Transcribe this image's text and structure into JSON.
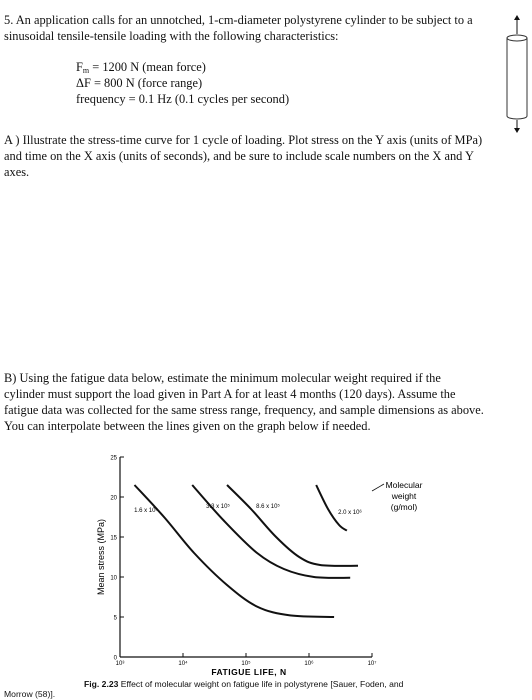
{
  "problem": {
    "intro_line1": "5. An application calls for an unnotched, 1-cm-diameter polystyrene cylinder to be subject to a",
    "intro_line2": "sinusoidal tensile-tensile loading with the following characteristics:",
    "fm_symbol": "F",
    "fm_sub": "m",
    "fm_rest": " = 1200 N (mean force)",
    "df_line": "ΔF = 800 N  (force range)",
    "freq_line": "frequency = 0.1 Hz  (0.1 cycles per second)"
  },
  "part_a": {
    "line1": "A ) Illustrate the stress-time curve for 1 cycle of loading.  Plot stress on the Y axis (units of MPa)",
    "line2": "and time on the X axis (units of seconds), and be sure to include scale numbers on the X and Y",
    "line3": "axes."
  },
  "part_b": {
    "line1": "B)  Using the fatigue data below, estimate the minimum molecular weight required if the",
    "line2": "cylinder must support the load given in Part A for at least 4 months (120 days).  Assume the",
    "line3": "fatigue data was collected for the same stress range, frequency, and sample dimensions as above.",
    "line4": "You can interpolate between the lines given on the graph below if needed."
  },
  "chart_data": {
    "type": "line",
    "xlabel": "FATIGUE LIFE, N",
    "ylabel": "Mean stress (MPa)",
    "xscale": "log",
    "xlim": [
      1000,
      10000000
    ],
    "ylim": [
      0,
      25
    ],
    "x_tick_labels": [
      "10³",
      "10⁴",
      "10⁵",
      "10⁶",
      "10⁷"
    ],
    "y_tick_labels": [
      "0",
      "5",
      "10",
      "15",
      "20",
      "25"
    ],
    "legend_title": [
      "Molecular",
      "weight",
      "(g/mol)"
    ],
    "series": [
      {
        "name": "1.6 x 10⁵",
        "points": [
          [
            1700,
            21.5
          ],
          [
            5000,
            17.5
          ],
          [
            15000,
            13
          ],
          [
            50000,
            9
          ],
          [
            150000,
            6.3
          ],
          [
            500000,
            5.2
          ],
          [
            2500000,
            5.0
          ]
        ]
      },
      {
        "name": "3.3 x 10⁵",
        "points": [
          [
            14000,
            21.5
          ],
          [
            45000,
            17
          ],
          [
            150000,
            13
          ],
          [
            400000,
            11
          ],
          [
            1200000,
            10
          ],
          [
            4500000,
            9.9
          ]
        ]
      },
      {
        "name": "8.6 x 10⁵",
        "points": [
          [
            50000,
            21.5
          ],
          [
            120000,
            18.5
          ],
          [
            300000,
            15
          ],
          [
            700000,
            12.5
          ],
          [
            1500000,
            11.5
          ],
          [
            6000000,
            11.4
          ]
        ]
      },
      {
        "name": "2.0 x 10⁶",
        "points": [
          [
            1300000,
            21.5
          ],
          [
            2000000,
            18.5
          ],
          [
            3000000,
            16.5
          ],
          [
            4000000,
            15.8
          ]
        ]
      }
    ],
    "caption_label": "Fig. 2.23",
    "caption_line1": "Effect of molecular weight on fatigue life in polystyrene [Sauer, Foden, and",
    "caption_line2": "Morrow (58)]."
  }
}
